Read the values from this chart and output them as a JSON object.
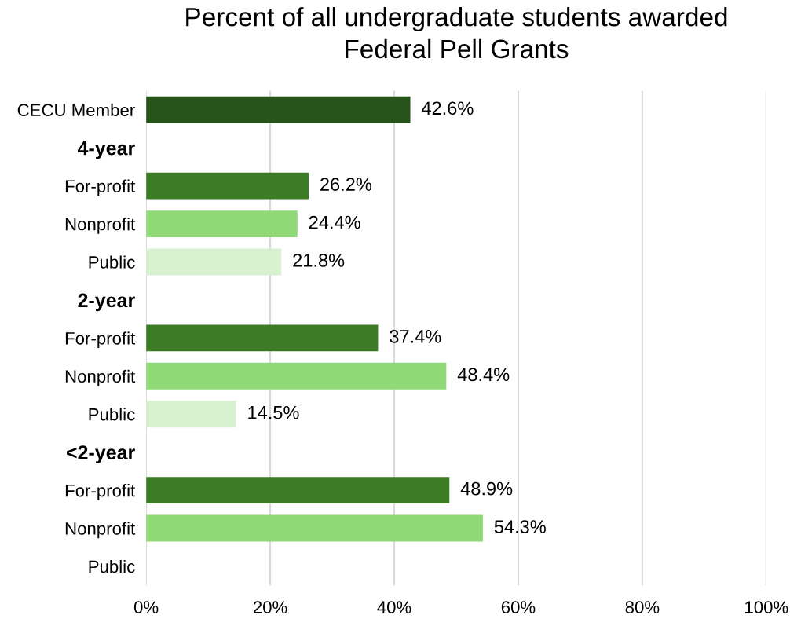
{
  "chart_data": {
    "type": "bar",
    "orientation": "horizontal",
    "title": "Percent of all undergraduate students awarded\nFederal Pell Grants",
    "categories": [
      "CECU Member",
      "4-year",
      "For-profit",
      "Nonprofit",
      "Public",
      "2-year",
      "For-profit",
      "Nonprofit",
      "Public",
      "<2-year",
      "For-profit",
      "Nonprofit",
      "Public"
    ],
    "values": [
      42.6,
      null,
      26.2,
      24.4,
      21.8,
      null,
      37.4,
      48.4,
      14.5,
      null,
      48.9,
      54.3,
      null
    ],
    "colors": [
      "#27541b",
      null,
      "#3b7c25",
      "#8fda77",
      "#d8f2d0",
      null,
      "#3b7c25",
      "#8fda77",
      "#d8f2d0",
      null,
      "#3b7c25",
      "#8fda77",
      "#d8f2d0"
    ],
    "value_labels": [
      "42.6%",
      null,
      "26.2%",
      "24.4%",
      "21.8%",
      null,
      "37.4%",
      "48.4%",
      "14.5%",
      null,
      "48.9%",
      "54.3%",
      null
    ],
    "xlim": [
      0,
      100
    ],
    "xticks": [
      {
        "value": 0,
        "label": "0%"
      },
      {
        "value": 20,
        "label": "20%"
      },
      {
        "value": 40,
        "label": "40%"
      },
      {
        "value": 60,
        "label": "60%"
      },
      {
        "value": 80,
        "label": "80%"
      },
      {
        "value": 100,
        "label": "100%"
      }
    ],
    "grid": "x"
  }
}
